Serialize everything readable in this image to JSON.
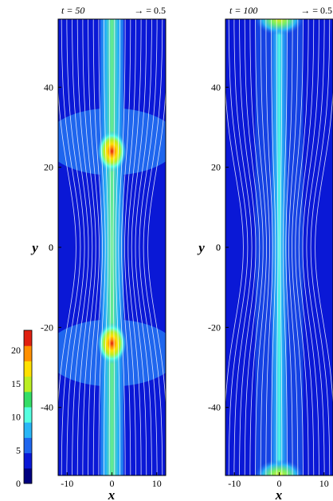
{
  "colors": {
    "background": "#0a18d6",
    "band_blue": "#1f66ee",
    "streamline": "#ffffff",
    "colormap": [
      "#000080",
      "#0a18d6",
      "#1f66ee",
      "#29b6f6",
      "#55ffe0",
      "#33dd66",
      "#bbee22",
      "#ffe000",
      "#ff9000",
      "#e02010"
    ]
  },
  "chart_data": [
    {
      "type": "heatmap",
      "time_label": "t = 50",
      "vector_reference": "→ = 0.5",
      "xlabel": "x",
      "ylabel": "y",
      "xlim": [
        -12,
        12
      ],
      "ylim": [
        -57,
        57
      ],
      "xticks": [
        "-10",
        "0",
        "10"
      ],
      "yticks": [
        "-40",
        "-20",
        "0",
        "20",
        "40"
      ],
      "peaks": [
        {
          "x": 0,
          "y": 24,
          "value": 22
        },
        {
          "x": 0,
          "y": -24,
          "value": 22
        }
      ],
      "filament": {
        "x": 0,
        "half_width": 1.2,
        "value": 10
      }
    },
    {
      "type": "heatmap",
      "time_label": "t = 100",
      "vector_reference": "→ = 0.5",
      "xlabel": "x",
      "ylabel": "y",
      "xlim": [
        -12,
        12
      ],
      "ylim": [
        -57,
        57
      ],
      "xticks": [
        "-10",
        "0",
        "10"
      ],
      "yticks": [
        "-40",
        "-20",
        "0",
        "20",
        "40"
      ],
      "peaks": [
        {
          "x": 0,
          "y": 57,
          "value": 12
        },
        {
          "x": 0,
          "y": -57,
          "value": 12
        }
      ],
      "filament": {
        "x": 0,
        "half_width": 0.8,
        "value": 6
      }
    }
  ],
  "colorbar": {
    "ticks": [
      "0",
      "5",
      "10",
      "15",
      "20"
    ],
    "values": [
      0,
      5,
      10,
      15,
      20
    ],
    "max": 23
  }
}
